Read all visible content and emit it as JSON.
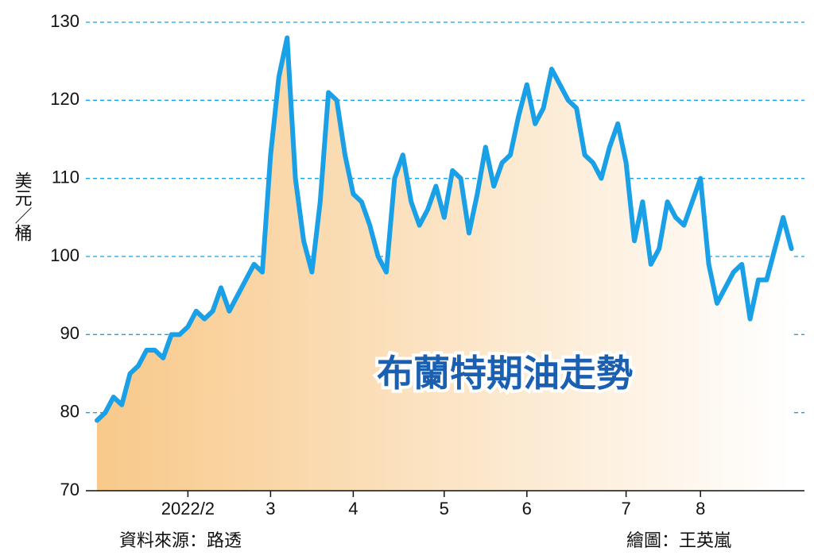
{
  "chart_data": {
    "type": "line",
    "title": "布蘭特期油走勢",
    "y_label": "美元／桶",
    "source": "資料來源：路透",
    "credit": "繪圖：王英嵐",
    "categories": [
      null,
      null,
      null,
      null,
      null,
      null,
      null,
      null,
      null,
      null,
      null,
      "2022/2",
      null,
      null,
      null,
      null,
      null,
      null,
      null,
      null,
      null,
      "3",
      null,
      null,
      null,
      null,
      null,
      null,
      null,
      null,
      null,
      "4",
      null,
      null,
      null,
      null,
      null,
      null,
      null,
      null,
      null,
      null,
      "5",
      null,
      null,
      null,
      null,
      null,
      null,
      null,
      null,
      null,
      "6",
      null,
      null,
      null,
      null,
      null,
      null,
      null,
      null,
      null,
      null,
      null,
      "7",
      null,
      null,
      null,
      null,
      null,
      null,
      null,
      null,
      "8",
      null,
      null,
      null,
      null,
      null,
      null,
      null,
      null,
      null,
      null,
      null
    ],
    "series": [
      {
        "name": "布蘭特期油",
        "color": "#1aa0e6",
        "values": [
          79,
          80,
          82,
          81,
          85,
          86,
          88,
          88,
          87,
          90,
          90,
          91,
          93,
          92,
          93,
          96,
          93,
          95,
          97,
          99,
          98,
          113,
          123,
          128,
          110,
          102,
          98,
          107,
          121,
          120,
          113,
          108,
          107,
          104,
          100,
          98,
          110,
          113,
          107,
          104,
          106,
          109,
          105,
          111,
          110,
          103,
          108,
          114,
          109,
          112,
          113,
          118,
          122,
          117,
          119,
          124,
          122,
          120,
          119,
          113,
          112,
          110,
          114,
          117,
          112,
          102,
          107,
          99,
          101,
          107,
          105,
          104,
          107,
          110,
          99,
          94,
          96,
          98,
          99,
          92,
          97,
          97,
          101,
          105,
          101
        ]
      }
    ],
    "ylim": [
      70,
      130
    ],
    "yticks": [
      70,
      80,
      90,
      100,
      110,
      120,
      130
    ],
    "grid": true
  }
}
